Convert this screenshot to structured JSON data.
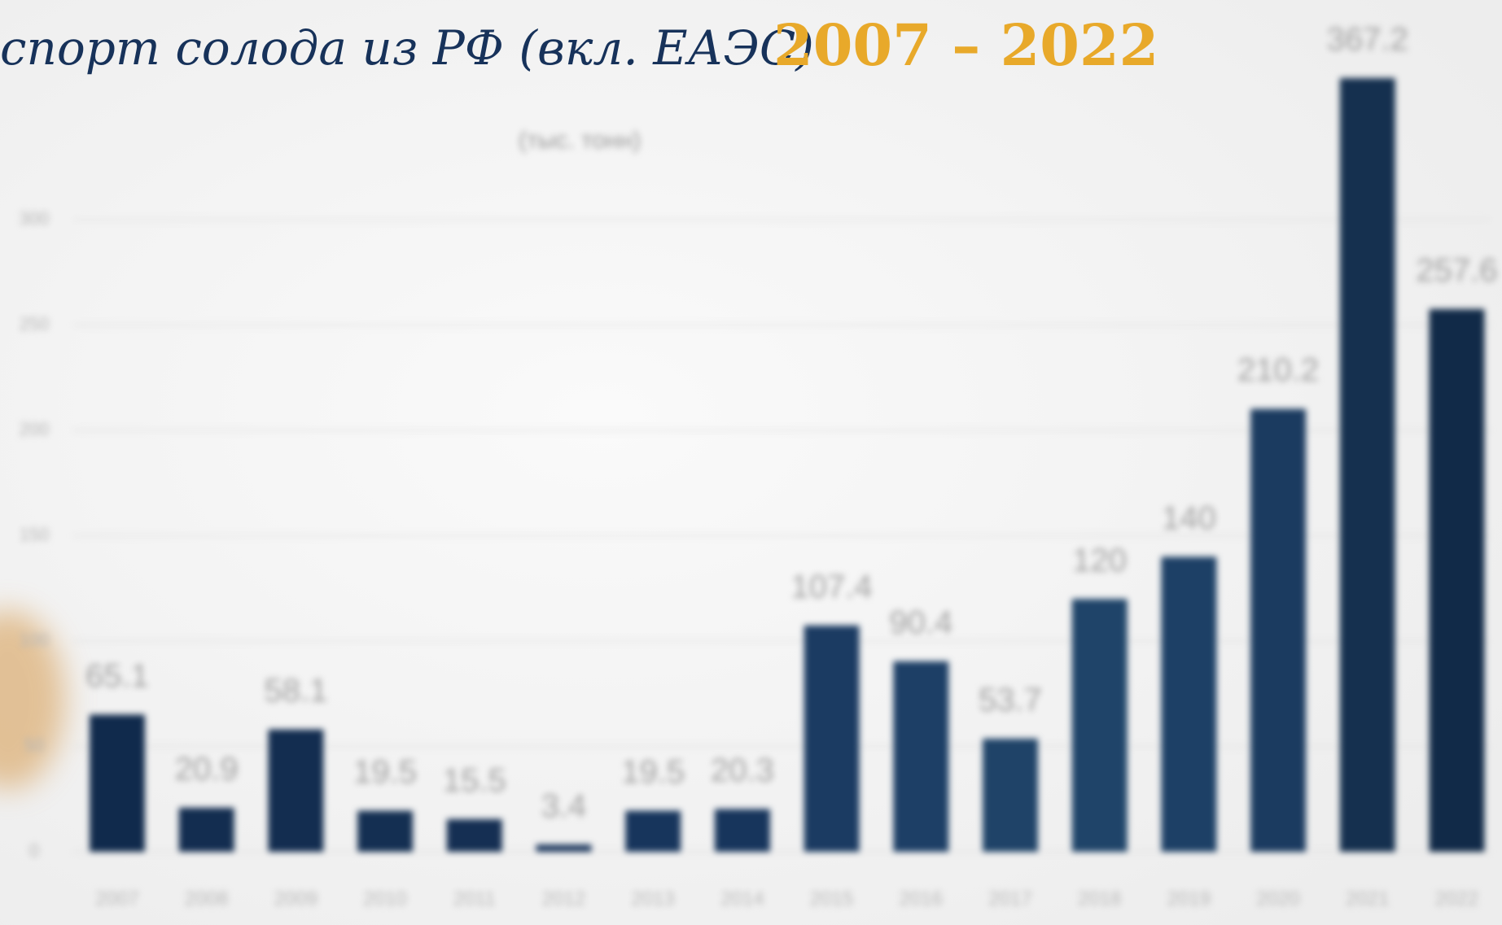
{
  "chart_data": {
    "type": "bar",
    "title": "спорт солода из РФ (вкл. ЕАЭС)",
    "title_highlight": "2007 – 2022",
    "subtitle": "(тыс. тонн)",
    "categories": [
      "2007",
      "2008",
      "2009",
      "2010",
      "2011",
      "2012",
      "2013",
      "2014",
      "2015",
      "2016",
      "2017",
      "2018",
      "2019",
      "2020",
      "2021",
      "2022"
    ],
    "values": [
      65.1,
      20.9,
      58.1,
      19.5,
      15.5,
      3.4,
      19.5,
      20.3,
      107.4,
      90.4,
      53.7,
      120,
      140,
      210.2,
      367.2,
      257.6
    ],
    "colors": [
      "#102a4c",
      "#132d50",
      "#132d50",
      "#142f52",
      "#152f53",
      "#17335a",
      "#17355c",
      "#17355c",
      "#1b3b62",
      "#1d3f66",
      "#1f4368",
      "#1f4469",
      "#1d4066",
      "#1b3b60",
      "#15304f",
      "#112a48"
    ],
    "ylim": [
      0,
      400
    ],
    "yticks": [
      0,
      50,
      100,
      150,
      200,
      250,
      300
    ],
    "grid": true
  }
}
